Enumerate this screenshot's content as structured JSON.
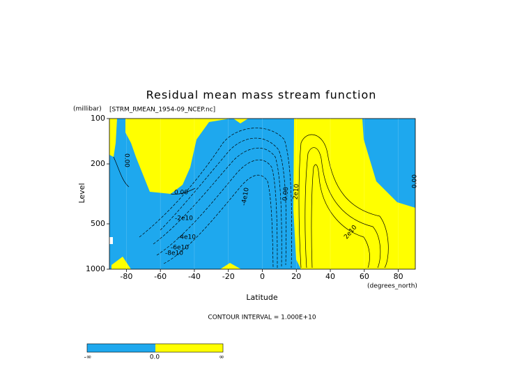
{
  "chart_data": {
    "type": "contour",
    "title": "Residual mean mass stream function",
    "subtitle": "[STRM_RMEAN_1954-09_NCEP.nc]",
    "ylabel": "Level",
    "ylabel_units": "(millibar)",
    "xlabel": "Latitude",
    "xlabel_units": "(degrees_north)",
    "xlim": [
      -90,
      90
    ],
    "ylim": [
      1000,
      100
    ],
    "ylog": true,
    "xticks": [
      -80,
      -60,
      -40,
      -20,
      0,
      20,
      40,
      60,
      80
    ],
    "yticks": [
      100,
      200,
      500,
      1000
    ],
    "negative_color": "#1ea8ee",
    "positive_color": "#ffff00",
    "contour_interval": "CONTOUR INTERVAL = 1.000E+10",
    "contour_labels": [
      "0.00",
      "0.00",
      "0.00",
      "-2e10",
      "-4e10",
      "-6e10",
      "-8e10",
      "-4e10",
      "2e10",
      "2e10",
      "0.00"
    ],
    "colorbar_labels": [
      "-∞",
      "0.0",
      "∞"
    ]
  }
}
